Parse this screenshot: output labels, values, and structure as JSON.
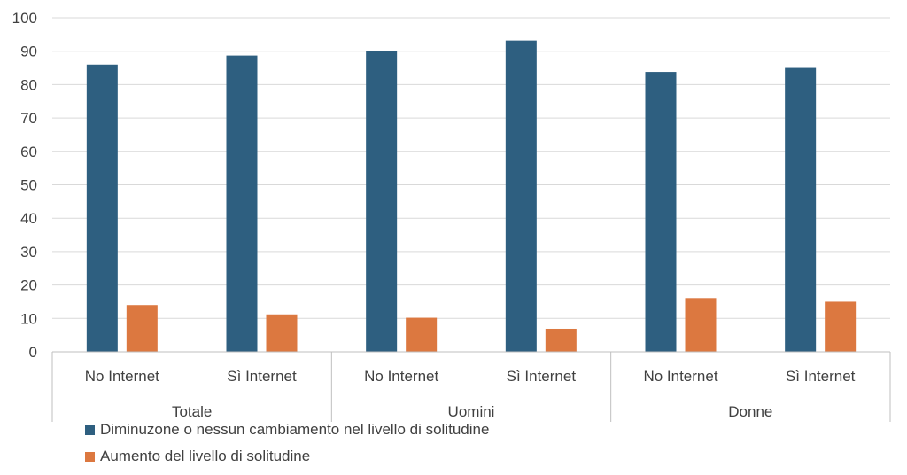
{
  "chart_data": {
    "type": "bar",
    "groups": [
      "Totale",
      "Uomini",
      "Donne"
    ],
    "categories": [
      "No Internet",
      "Sì Internet",
      "No Internet",
      "Sì Internet",
      "No Internet",
      "Sì Internet"
    ],
    "series": [
      {
        "name": "Diminuzone o nessun cambiamento nel livello di solitudine",
        "color": "#2E5F80",
        "values": [
          86,
          88.7,
          90,
          93.2,
          83.8,
          85
        ]
      },
      {
        "name": "Aumento del livello di solitudine",
        "color": "#DC7840",
        "values": [
          14,
          11.2,
          10.2,
          6.9,
          16.1,
          15
        ]
      }
    ],
    "yticks": [
      "0",
      "10",
      "20",
      "30",
      "40",
      "50",
      "60",
      "70",
      "80",
      "90",
      "100"
    ],
    "ylim": [
      0,
      100
    ],
    "grid": true,
    "legend_position": "bottom-left"
  }
}
